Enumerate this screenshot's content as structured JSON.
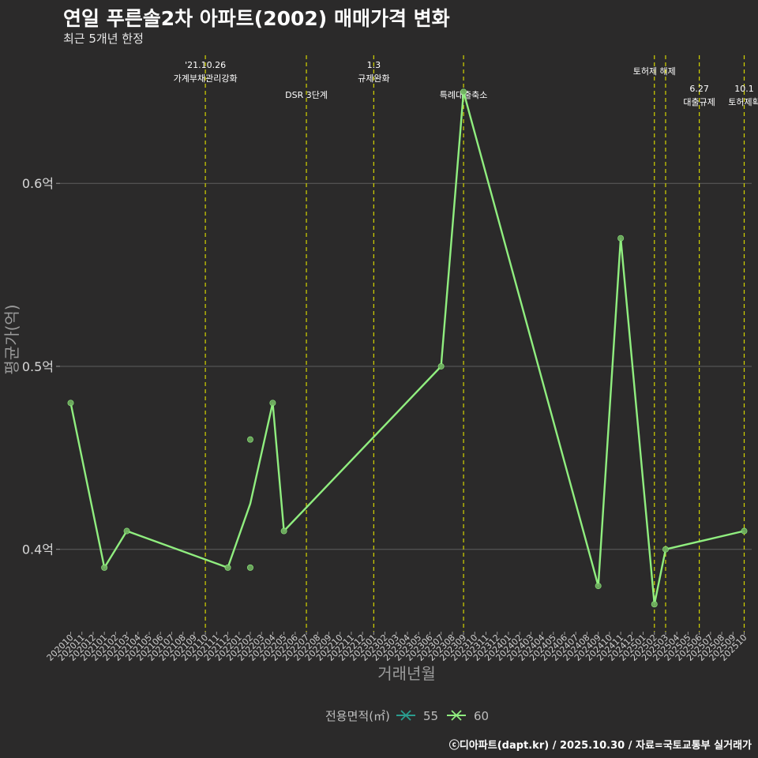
{
  "title": "연일 푸른솔2차 아파트(2002) 매매가격 변화",
  "subtitle": "최근 5개년 한정",
  "caption": "ⓒ디아파트(dapt.kr) / 2025.10.30 / 자료=국토교통부 실거래가",
  "colors": {
    "background": "#2b2a2a",
    "grid": "#5e5e5e",
    "event_line": "#d4d400",
    "series_60": "#90ee7f",
    "series_55": "#2a9d8f",
    "point_dim": "#6fae5f"
  },
  "chart_data": {
    "type": "line",
    "title": "연일 푸른솔2차 아파트(2002) 매매가격 변화",
    "xlabel": "거래년월",
    "ylabel": "평균가(억)",
    "ylim": [
      0.355,
      0.67
    ],
    "y_ticks": [
      {
        "value": 0.4,
        "label": "0.4억"
      },
      {
        "value": 0.5,
        "label": "0.5억"
      },
      {
        "value": 0.6,
        "label": "0.6억"
      }
    ],
    "categories": [
      "202010",
      "202011",
      "202012",
      "202101",
      "202102",
      "202103",
      "202104",
      "202105",
      "202106",
      "202107",
      "202108",
      "202109",
      "202110",
      "202111",
      "202112",
      "202201",
      "202202",
      "202203",
      "202204",
      "202205",
      "202206",
      "202207",
      "202208",
      "202209",
      "202210",
      "202211",
      "202212",
      "202301",
      "202302",
      "202303",
      "202304",
      "202305",
      "202306",
      "202307",
      "202308",
      "202309",
      "202310",
      "202311",
      "202312",
      "202401",
      "202402",
      "202403",
      "202404",
      "202405",
      "202406",
      "202407",
      "202408",
      "202409",
      "202410",
      "202411",
      "202412",
      "202501",
      "202502",
      "202503",
      "202504",
      "202505",
      "202506",
      "202507",
      "202508",
      "202509",
      "202510"
    ],
    "events": [
      {
        "category": "202110",
        "label": "'21.10.26\n가계부채관리강화",
        "level": 1
      },
      {
        "category": "202207",
        "label": "DSR 3단계",
        "level": 2
      },
      {
        "category": "202301",
        "label": "1.3\n규제완화",
        "level": 1
      },
      {
        "category": "202309",
        "label": "특례대출축소",
        "level": 2
      },
      {
        "category": "202502",
        "label": "토허제 해제",
        "level": 1
      },
      {
        "category": "202503",
        "label": "",
        "level": 1
      },
      {
        "category": "202506",
        "label": "6.27\n대출규제",
        "level": 2
      },
      {
        "category": "202510",
        "label": "10.1\n토허제확",
        "level": 2
      }
    ],
    "series": [
      {
        "name": "55",
        "x": [],
        "values": [],
        "scatter": []
      },
      {
        "name": "60",
        "x": [
          "202010",
          "202101",
          "202103",
          "202112",
          "202202",
          "202204",
          "202205",
          "202307",
          "202309",
          "202409",
          "202411",
          "202502",
          "202503",
          "202510"
        ],
        "values": [
          0.48,
          0.39,
          0.41,
          0.39,
          0.425,
          0.48,
          0.41,
          0.5,
          0.65,
          0.38,
          0.57,
          0.37,
          0.4,
          0.41
        ],
        "scatter": [
          {
            "x": "202010",
            "y": 0.48
          },
          {
            "x": "202101",
            "y": 0.39
          },
          {
            "x": "202103",
            "y": 0.41
          },
          {
            "x": "202112",
            "y": 0.39
          },
          {
            "x": "202202",
            "y": 0.46
          },
          {
            "x": "202202",
            "y": 0.39
          },
          {
            "x": "202204",
            "y": 0.48
          },
          {
            "x": "202205",
            "y": 0.41
          },
          {
            "x": "202307",
            "y": 0.5
          },
          {
            "x": "202309",
            "y": 0.65
          },
          {
            "x": "202409",
            "y": 0.38
          },
          {
            "x": "202411",
            "y": 0.57
          },
          {
            "x": "202502",
            "y": 0.37
          },
          {
            "x": "202503",
            "y": 0.4
          },
          {
            "x": "202510",
            "y": 0.41
          }
        ]
      }
    ],
    "legend": {
      "title": "전용면적(㎡)",
      "entries": [
        "55",
        "60"
      ],
      "position": "bottom"
    }
  }
}
